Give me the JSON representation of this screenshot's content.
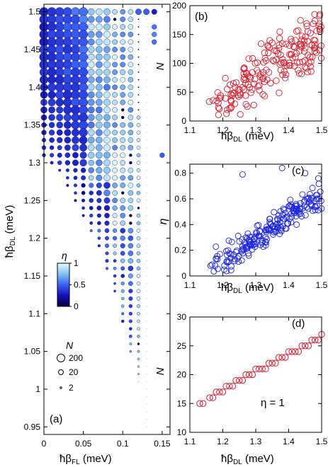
{
  "chart_data": [
    {
      "panel_label": "(a)",
      "type": "scatter",
      "xlabel": "ħβ_FL (meV)",
      "ylabel": "ħβ_DL (meV)",
      "xlim": [
        0,
        0.16
      ],
      "ylim": [
        0.94,
        1.51
      ],
      "xticks": [
        0,
        0.05,
        0.1,
        0.15
      ],
      "xtick_labels": [
        "0",
        "0.05",
        "0.1",
        "0.15"
      ],
      "yticks": [
        0.95,
        1.0,
        1.05,
        1.1,
        1.15,
        1.2,
        1.25,
        1.3,
        1.35,
        1.4,
        1.45,
        1.5
      ],
      "ytick_labels": [
        "0.95",
        "1",
        "1.05",
        "1.1",
        "1.15",
        "1.2",
        "1.25",
        "1.3",
        "1.35",
        "1.4",
        "1.45",
        "1.5"
      ],
      "grid": false,
      "encoding": {
        "color": "η",
        "size": "N"
      },
      "colorbar": {
        "label": "η",
        "min": 0,
        "max": 1,
        "ticks": [
          0,
          0.5,
          1
        ],
        "tick_labels": [
          "0",
          "0.5",
          "1"
        ],
        "colors": [
          "#00003f",
          "#1410b8",
          "#3a5ff4",
          "#7fc2f3",
          "#e6fbff"
        ]
      },
      "size_legend": {
        "label": "N",
        "values": [
          200,
          20,
          2
        ],
        "labels": [
          "200",
          "20",
          "2"
        ]
      },
      "x_step": 0.01,
      "y_step": 0.01,
      "grid_cols": [
        0,
        0.01,
        0.02,
        0.03,
        0.04,
        0.05,
        0.06,
        0.07,
        0.08,
        0.09,
        0.1,
        0.11,
        0.12,
        0.13,
        0.14,
        0.15
      ],
      "lower_boundary": [
        1.31,
        1.3,
        1.29,
        1.27,
        1.25,
        1.23,
        1.21,
        1.19,
        1.16,
        1.13,
        1.09,
        1.05,
        1.01,
        0.95,
        1.51,
        1.31
      ],
      "top_row": 1.5,
      "fade_column": 0.13,
      "extra_points": [
        {
          "x": 0.15,
          "y": 1.31,
          "eta": 0.5,
          "N": 110
        }
      ]
    },
    {
      "panel_label": "(b)",
      "type": "scatter",
      "xlabel": "ħβ_DL (meV)",
      "ylabel": "N",
      "xlim": [
        1.1,
        1.5
      ],
      "ylim": [
        0,
        200
      ],
      "xticks": [
        1.1,
        1.2,
        1.3,
        1.4,
        1.5
      ],
      "xtick_labels": [
        "1.1",
        "1.2",
        "1.3",
        "1.4",
        "1.5"
      ],
      "yticks": [
        0,
        50,
        100,
        150,
        200
      ],
      "ytick_labels": [
        "0",
        "50",
        "100",
        "150",
        "200"
      ],
      "grid": false,
      "marker": "open circle",
      "color": "#d42030",
      "n_points": 200,
      "trend": {
        "x": [
          1.15,
          1.5
        ],
        "y": [
          20,
          150
        ]
      }
    },
    {
      "panel_label": "(c)",
      "type": "scatter",
      "xlabel": "ħβ_DL (meV)",
      "ylabel": "η",
      "xlim": [
        1.1,
        1.5
      ],
      "ylim": [
        0,
        0.87
      ],
      "xticks": [
        1.1,
        1.2,
        1.3,
        1.4,
        1.5
      ],
      "xtick_labels": [
        "1.1",
        "1.2",
        "1.3",
        "1.4",
        "1.5"
      ],
      "yticks": [
        0,
        0.2,
        0.4,
        0.6,
        0.8
      ],
      "ytick_labels": [
        "0",
        "0.2",
        "0.4",
        "0.6",
        "0.8"
      ],
      "grid": false,
      "marker": "open circle",
      "color": "#1a23e0",
      "n_points": 210,
      "trend": {
        "x": [
          1.16,
          1.5
        ],
        "y": [
          0.05,
          0.57
        ]
      },
      "outliers": [
        {
          "x": 1.26,
          "y": 0.79
        },
        {
          "x": 1.38,
          "y": 0.84
        },
        {
          "x": 1.45,
          "y": 0.8
        },
        {
          "x": 1.49,
          "y": 0.76
        }
      ]
    },
    {
      "panel_label": "(d)",
      "type": "scatter",
      "xlabel": "ħβ_DL (meV)",
      "ylabel": "N",
      "xlim": [
        1.1,
        1.5
      ],
      "ylim": [
        10,
        30
      ],
      "xticks": [
        1.1,
        1.2,
        1.3,
        1.4,
        1.5
      ],
      "xtick_labels": [
        "1.1",
        "1.2",
        "1.3",
        "1.4",
        "1.5"
      ],
      "yticks": [
        10,
        15,
        20,
        25,
        30
      ],
      "ytick_labels": [
        "10",
        "15",
        "20",
        "25",
        "30"
      ],
      "grid": false,
      "marker": "open circle",
      "color": "#d42030",
      "annotation": "η = 1",
      "points": [
        {
          "x": 1.13,
          "y": 15
        },
        {
          "x": 1.14,
          "y": 15
        },
        {
          "x": 1.16,
          "y": 16
        },
        {
          "x": 1.17,
          "y": 16
        },
        {
          "x": 1.18,
          "y": 17
        },
        {
          "x": 1.19,
          "y": 17
        },
        {
          "x": 1.2,
          "y": 17
        },
        {
          "x": 1.21,
          "y": 18
        },
        {
          "x": 1.22,
          "y": 18
        },
        {
          "x": 1.23,
          "y": 18
        },
        {
          "x": 1.24,
          "y": 19
        },
        {
          "x": 1.25,
          "y": 19
        },
        {
          "x": 1.26,
          "y": 19
        },
        {
          "x": 1.27,
          "y": 20
        },
        {
          "x": 1.28,
          "y": 20
        },
        {
          "x": 1.29,
          "y": 20
        },
        {
          "x": 1.3,
          "y": 21
        },
        {
          "x": 1.31,
          "y": 21
        },
        {
          "x": 1.32,
          "y": 21
        },
        {
          "x": 1.33,
          "y": 21
        },
        {
          "x": 1.34,
          "y": 22
        },
        {
          "x": 1.35,
          "y": 22
        },
        {
          "x": 1.36,
          "y": 22
        },
        {
          "x": 1.37,
          "y": 23
        },
        {
          "x": 1.38,
          "y": 23
        },
        {
          "x": 1.39,
          "y": 23
        },
        {
          "x": 1.4,
          "y": 24
        },
        {
          "x": 1.41,
          "y": 24
        },
        {
          "x": 1.42,
          "y": 24
        },
        {
          "x": 1.43,
          "y": 24
        },
        {
          "x": 1.44,
          "y": 25
        },
        {
          "x": 1.45,
          "y": 25
        },
        {
          "x": 1.46,
          "y": 25
        },
        {
          "x": 1.47,
          "y": 26
        },
        {
          "x": 1.48,
          "y": 26
        },
        {
          "x": 1.49,
          "y": 26
        },
        {
          "x": 1.5,
          "y": 27
        }
      ]
    }
  ]
}
